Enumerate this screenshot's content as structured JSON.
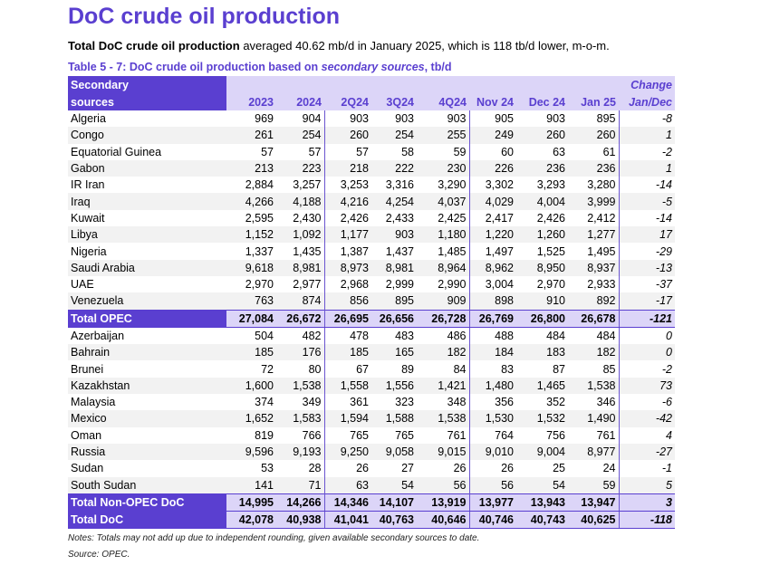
{
  "title": "DoC crude oil production",
  "subtitle": {
    "bold": "Total DoC crude oil production",
    "rest": " averaged 40.62 mb/d in January 2025, which is 118 tb/d lower, m-o-m."
  },
  "caption": {
    "prefix": "Table 5 - 7: DoC crude oil production based on ",
    "italic": "secondary sources",
    "suffix": ", tb/d"
  },
  "header": {
    "row1": [
      "Secondary",
      "",
      "",
      "",
      "",
      "",
      "",
      "",
      "",
      "Change"
    ],
    "row2": [
      "sources",
      "2023",
      "2024",
      "2Q24",
      "3Q24",
      "4Q24",
      "Nov 24",
      "Dec 24",
      "Jan 25",
      "Jan/Dec"
    ]
  },
  "rows": [
    {
      "type": "data",
      "cells": [
        "Algeria",
        "969",
        "904",
        "903",
        "903",
        "903",
        "905",
        "903",
        "895",
        "-8"
      ]
    },
    {
      "type": "data",
      "cells": [
        "Congo",
        "261",
        "254",
        "260",
        "254",
        "255",
        "249",
        "260",
        "260",
        "1"
      ]
    },
    {
      "type": "data",
      "cells": [
        "Equatorial Guinea",
        "57",
        "57",
        "57",
        "58",
        "59",
        "60",
        "63",
        "61",
        "-2"
      ]
    },
    {
      "type": "data",
      "cells": [
        "Gabon",
        "213",
        "223",
        "218",
        "222",
        "230",
        "226",
        "236",
        "236",
        "1"
      ]
    },
    {
      "type": "data",
      "cells": [
        "IR Iran",
        "2,884",
        "3,257",
        "3,253",
        "3,316",
        "3,290",
        "3,302",
        "3,293",
        "3,280",
        "-14"
      ]
    },
    {
      "type": "data",
      "cells": [
        "Iraq",
        "4,266",
        "4,188",
        "4,216",
        "4,254",
        "4,037",
        "4,029",
        "4,004",
        "3,999",
        "-5"
      ]
    },
    {
      "type": "data",
      "cells": [
        "Kuwait",
        "2,595",
        "2,430",
        "2,426",
        "2,433",
        "2,425",
        "2,417",
        "2,426",
        "2,412",
        "-14"
      ]
    },
    {
      "type": "data",
      "cells": [
        "Libya",
        "1,152",
        "1,092",
        "1,177",
        "903",
        "1,180",
        "1,220",
        "1,260",
        "1,277",
        "17"
      ]
    },
    {
      "type": "data",
      "cells": [
        "Nigeria",
        "1,337",
        "1,435",
        "1,387",
        "1,437",
        "1,485",
        "1,497",
        "1,525",
        "1,495",
        "-29"
      ]
    },
    {
      "type": "data",
      "cells": [
        "Saudi Arabia",
        "9,618",
        "8,981",
        "8,973",
        "8,981",
        "8,964",
        "8,962",
        "8,950",
        "8,937",
        "-13"
      ]
    },
    {
      "type": "data",
      "cells": [
        "UAE",
        "2,970",
        "2,977",
        "2,968",
        "2,999",
        "2,990",
        "3,004",
        "2,970",
        "2,933",
        "-37"
      ]
    },
    {
      "type": "data",
      "cells": [
        "Venezuela",
        "763",
        "874",
        "856",
        "895",
        "909",
        "898",
        "910",
        "892",
        "-17"
      ]
    },
    {
      "type": "tot",
      "cells": [
        "Total  OPEC",
        "27,084",
        "26,672",
        "26,695",
        "26,656",
        "26,728",
        "26,769",
        "26,800",
        "26,678",
        "-121"
      ]
    },
    {
      "type": "data",
      "cells": [
        "Azerbaijan",
        "504",
        "482",
        "478",
        "483",
        "486",
        "488",
        "484",
        "484",
        "0"
      ]
    },
    {
      "type": "data",
      "cells": [
        "Bahrain",
        "185",
        "176",
        "185",
        "165",
        "182",
        "184",
        "183",
        "182",
        "0"
      ]
    },
    {
      "type": "data",
      "cells": [
        "Brunei",
        "72",
        "80",
        "67",
        "89",
        "84",
        "83",
        "87",
        "85",
        "-2"
      ]
    },
    {
      "type": "data",
      "cells": [
        "Kazakhstan",
        "1,600",
        "1,538",
        "1,558",
        "1,556",
        "1,421",
        "1,480",
        "1,465",
        "1,538",
        "73"
      ]
    },
    {
      "type": "data",
      "cells": [
        "Malaysia",
        "374",
        "349",
        "361",
        "323",
        "348",
        "356",
        "352",
        "346",
        "-6"
      ]
    },
    {
      "type": "data",
      "cells": [
        "Mexico",
        "1,652",
        "1,583",
        "1,594",
        "1,588",
        "1,538",
        "1,530",
        "1,532",
        "1,490",
        "-42"
      ]
    },
    {
      "type": "data",
      "cells": [
        "Oman",
        "819",
        "766",
        "765",
        "765",
        "761",
        "764",
        "756",
        "761",
        "4"
      ]
    },
    {
      "type": "data",
      "cells": [
        "Russia",
        "9,596",
        "9,193",
        "9,250",
        "9,058",
        "9,015",
        "9,010",
        "9,004",
        "8,977",
        "-27"
      ]
    },
    {
      "type": "data",
      "cells": [
        "Sudan",
        "53",
        "28",
        "26",
        "27",
        "26",
        "26",
        "25",
        "24",
        "-1"
      ]
    },
    {
      "type": "data",
      "cells": [
        "South Sudan",
        "141",
        "71",
        "63",
        "54",
        "56",
        "56",
        "54",
        "59",
        "5"
      ]
    },
    {
      "type": "tot",
      "cells": [
        "Total Non-OPEC DoC",
        "14,995",
        "14,266",
        "14,346",
        "14,107",
        "13,919",
        "13,977",
        "13,943",
        "13,947",
        "3"
      ]
    },
    {
      "type": "tot",
      "cells": [
        "Total DoC",
        "42,078",
        "40,938",
        "41,041",
        "40,763",
        "40,646",
        "40,746",
        "40,743",
        "40,625",
        "-118"
      ]
    }
  ],
  "notes": "Notes: Totals may not add up due to independent rounding, given available secondary sources to date.",
  "source": "Source: OPEC.",
  "colors": {
    "accent": "#5a3fd0",
    "header_bg": "#dcd5f8",
    "stripe": "#f2f2f2"
  }
}
